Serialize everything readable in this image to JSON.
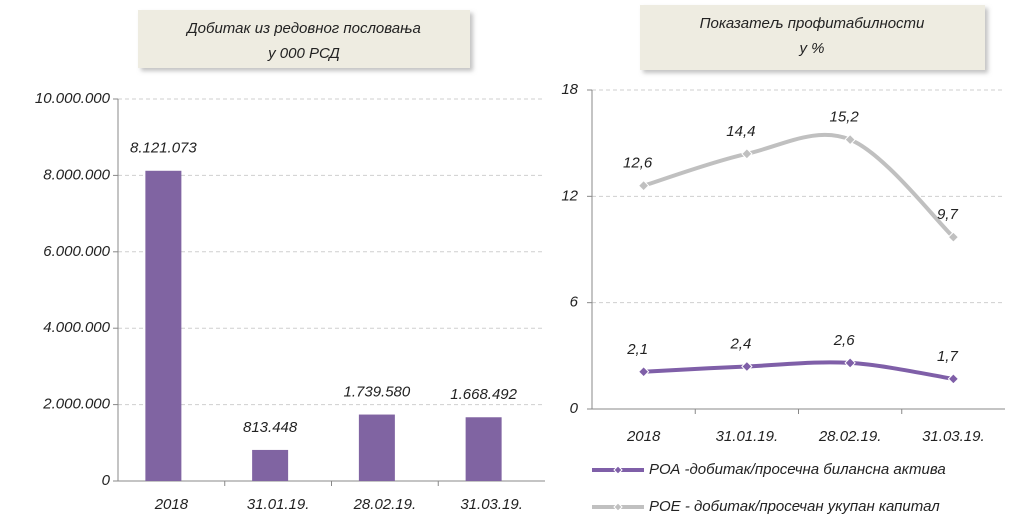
{
  "chart_data": [
    {
      "type": "bar",
      "title": "Добитак из редовног пословања",
      "subtitle": "у 000 РСД",
      "categories": [
        "2018",
        "31.01.19.",
        "28.02.19.",
        "31.03.19."
      ],
      "values": [
        8121073,
        813448,
        1739580,
        1668492
      ],
      "value_labels": [
        "8.121.073",
        "813.448",
        "1.739.580",
        "1.668.492"
      ],
      "color": "#8064a2",
      "ylim": [
        0,
        10000000
      ],
      "yticks": [
        0,
        {
          "value": 2000000,
          "label": "2.000.000"
        },
        {
          "value": 4000000,
          "label": "4.000.000"
        },
        {
          "value": 6000000,
          "label": "6.000.000"
        },
        {
          "value": 8000000,
          "label": "8.000.000"
        },
        {
          "value": 10000000,
          "label": "10.000.000"
        }
      ],
      "grid": true
    },
    {
      "type": "line",
      "title": "Показатељ профитабилности",
      "subtitle": "у %",
      "categories": [
        "2018",
        "31.01.19.",
        "28.02.19.",
        "31.03.19."
      ],
      "series": [
        {
          "name": "РОА -добитак/просечна билансна актива",
          "color": "#7f5fa8",
          "values": [
            2.1,
            2.4,
            2.6,
            1.7
          ],
          "value_labels": [
            "2,1",
            "2,4",
            "2,6",
            "1,7"
          ]
        },
        {
          "name": "РОЕ - добитак/просечан укупан капитал",
          "color": "#c0c0c0",
          "values": [
            12.6,
            14.4,
            15.2,
            9.7
          ],
          "value_labels": [
            "12,6",
            "14,4",
            "15,2",
            "9,7"
          ]
        }
      ],
      "ylim": [
        0,
        18
      ],
      "yticks": [
        0,
        6,
        12,
        18
      ],
      "grid": true,
      "smooth": true,
      "legend": "bottom"
    }
  ]
}
